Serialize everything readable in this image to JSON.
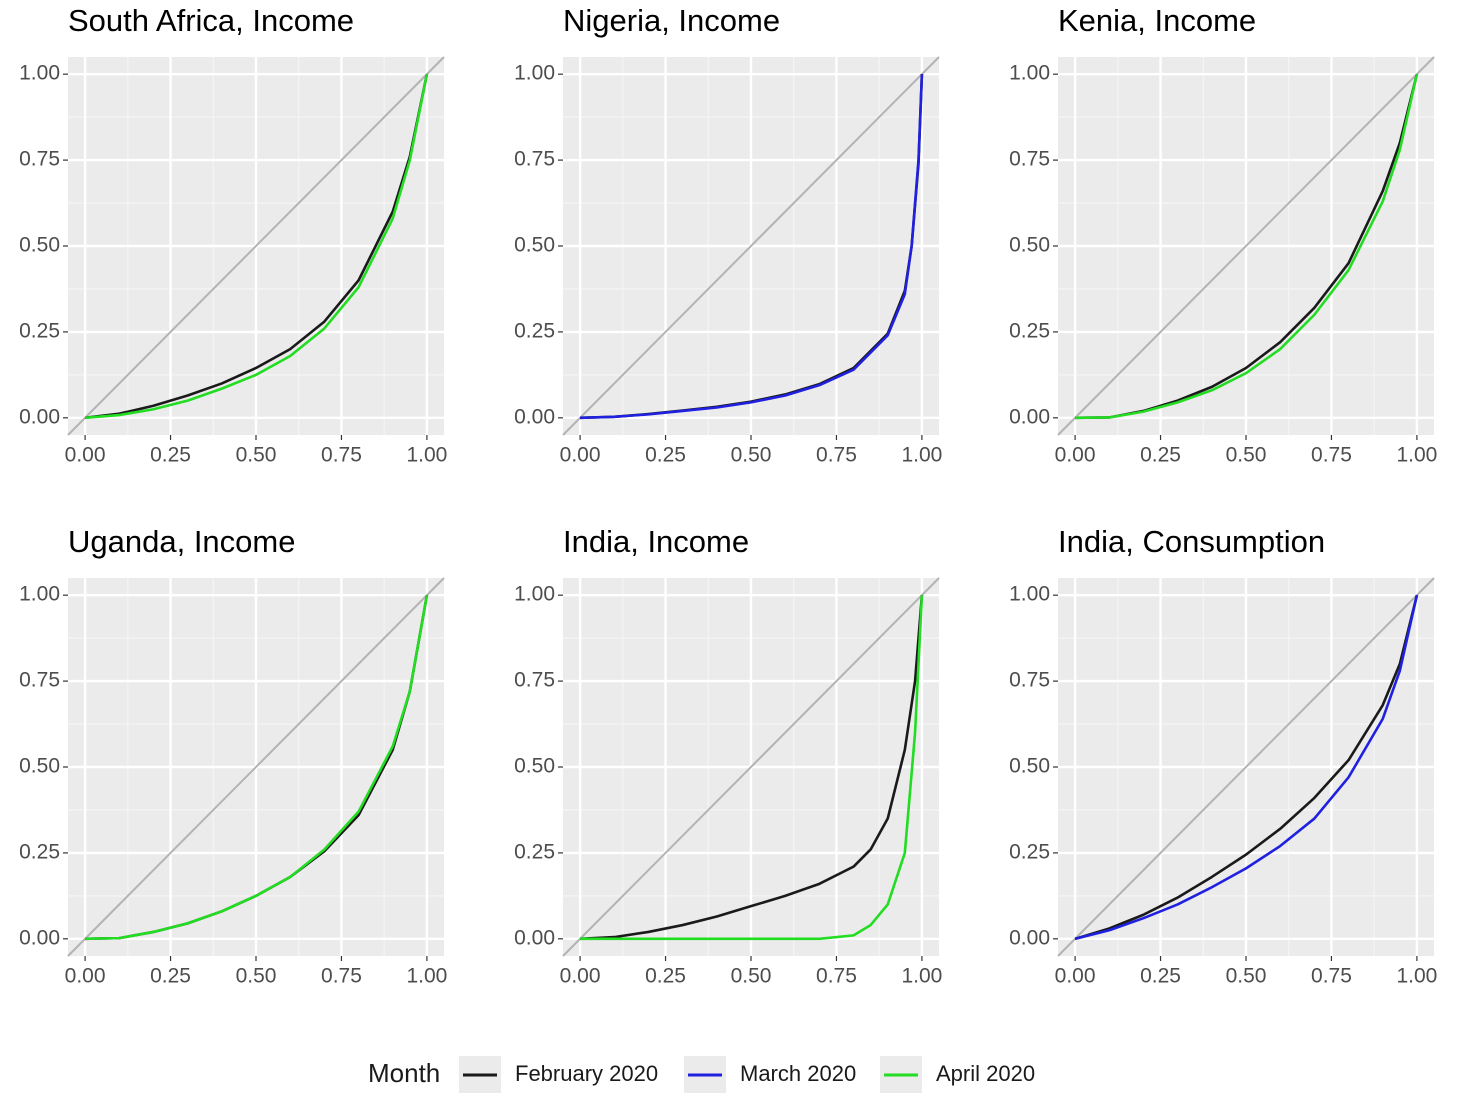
{
  "chart_data": [
    {
      "type": "line",
      "title": "South Africa, Income",
      "x": [
        0,
        0.1,
        0.2,
        0.3,
        0.4,
        0.5,
        0.6,
        0.7,
        0.8,
        0.9,
        0.95,
        1
      ],
      "series": [
        {
          "name": "February 2020",
          "color": "#1a1a1a",
          "values": [
            0,
            0.012,
            0.035,
            0.065,
            0.1,
            0.145,
            0.2,
            0.28,
            0.4,
            0.6,
            0.76,
            1
          ]
        },
        {
          "name": "April 2020",
          "color": "#22dd22",
          "values": [
            0,
            0.008,
            0.025,
            0.05,
            0.085,
            0.125,
            0.18,
            0.26,
            0.38,
            0.58,
            0.75,
            1
          ]
        }
      ],
      "xlim": [
        -0.05,
        1.05
      ],
      "ylim": [
        -0.05,
        1.05
      ],
      "xticks": [
        {
          "value": 0,
          "label": "0.00"
        },
        {
          "value": 0.25,
          "label": "0.25"
        },
        {
          "value": 0.5,
          "label": "0.50"
        },
        {
          "value": 0.75,
          "label": "0.75"
        },
        {
          "value": 1,
          "label": "1.00"
        }
      ],
      "yticks": [
        {
          "value": 0,
          "label": "0.00"
        },
        {
          "value": 0.25,
          "label": "0.25"
        },
        {
          "value": 0.5,
          "label": "0.50"
        },
        {
          "value": 0.75,
          "label": "0.75"
        },
        {
          "value": 1,
          "label": "1.00"
        }
      ],
      "grid": true
    },
    {
      "type": "line",
      "title": "Nigeria, Income",
      "x": [
        0,
        0.1,
        0.2,
        0.3,
        0.4,
        0.5,
        0.6,
        0.7,
        0.8,
        0.9,
        0.95,
        0.97,
        0.99,
        1
      ],
      "series": [
        {
          "name": "February 2020",
          "color": "#1a1a1a",
          "values": [
            0,
            0.003,
            0.011,
            0.021,
            0.032,
            0.047,
            0.068,
            0.098,
            0.145,
            0.245,
            0.37,
            0.5,
            0.74,
            1
          ]
        },
        {
          "name": "March 2020",
          "color": "#2020e0",
          "values": [
            0,
            0.003,
            0.01,
            0.02,
            0.03,
            0.045,
            0.065,
            0.095,
            0.14,
            0.24,
            0.36,
            0.5,
            0.75,
            1
          ]
        }
      ],
      "xlim": [
        -0.05,
        1.05
      ],
      "ylim": [
        -0.05,
        1.05
      ],
      "xticks": [
        {
          "value": 0,
          "label": "0.00"
        },
        {
          "value": 0.25,
          "label": "0.25"
        },
        {
          "value": 0.5,
          "label": "0.50"
        },
        {
          "value": 0.75,
          "label": "0.75"
        },
        {
          "value": 1,
          "label": "1.00"
        }
      ],
      "yticks": [
        {
          "value": 0,
          "label": "0.00"
        },
        {
          "value": 0.25,
          "label": "0.25"
        },
        {
          "value": 0.5,
          "label": "0.50"
        },
        {
          "value": 0.75,
          "label": "0.75"
        },
        {
          "value": 1,
          "label": "1.00"
        }
      ],
      "grid": true
    },
    {
      "type": "line",
      "title": "Kenia, Income",
      "x": [
        0,
        0.1,
        0.2,
        0.3,
        0.4,
        0.5,
        0.6,
        0.7,
        0.8,
        0.9,
        0.95,
        1
      ],
      "series": [
        {
          "name": "February 2020",
          "color": "#1a1a1a",
          "values": [
            0,
            0.001,
            0.02,
            0.05,
            0.09,
            0.145,
            0.22,
            0.32,
            0.45,
            0.66,
            0.8,
            1
          ]
        },
        {
          "name": "April 2020",
          "color": "#22dd22",
          "values": [
            0,
            0.001,
            0.018,
            0.045,
            0.08,
            0.13,
            0.2,
            0.3,
            0.43,
            0.63,
            0.78,
            1
          ]
        }
      ],
      "xlim": [
        -0.05,
        1.05
      ],
      "ylim": [
        -0.05,
        1.05
      ],
      "xticks": [
        {
          "value": 0,
          "label": "0.00"
        },
        {
          "value": 0.25,
          "label": "0.25"
        },
        {
          "value": 0.5,
          "label": "0.50"
        },
        {
          "value": 0.75,
          "label": "0.75"
        },
        {
          "value": 1,
          "label": "1.00"
        }
      ],
      "yticks": [
        {
          "value": 0,
          "label": "0.00"
        },
        {
          "value": 0.25,
          "label": "0.25"
        },
        {
          "value": 0.5,
          "label": "0.50"
        },
        {
          "value": 0.75,
          "label": "0.75"
        },
        {
          "value": 1,
          "label": "1.00"
        }
      ],
      "grid": true
    },
    {
      "type": "line",
      "title": "Uganda, Income",
      "x": [
        0,
        0.1,
        0.2,
        0.3,
        0.4,
        0.5,
        0.6,
        0.7,
        0.8,
        0.9,
        0.95,
        1
      ],
      "series": [
        {
          "name": "February 2020",
          "color": "#1a1a1a",
          "values": [
            0,
            0.002,
            0.02,
            0.045,
            0.08,
            0.125,
            0.18,
            0.255,
            0.36,
            0.55,
            0.72,
            1
          ]
        },
        {
          "name": "April 2020",
          "color": "#22dd22",
          "values": [
            0,
            0.002,
            0.02,
            0.045,
            0.08,
            0.125,
            0.18,
            0.26,
            0.37,
            0.56,
            0.72,
            1
          ]
        }
      ],
      "xlim": [
        -0.05,
        1.05
      ],
      "ylim": [
        -0.05,
        1.05
      ],
      "xticks": [
        {
          "value": 0,
          "label": "0.00"
        },
        {
          "value": 0.25,
          "label": "0.25"
        },
        {
          "value": 0.5,
          "label": "0.50"
        },
        {
          "value": 0.75,
          "label": "0.75"
        },
        {
          "value": 1,
          "label": "1.00"
        }
      ],
      "yticks": [
        {
          "value": 0,
          "label": "0.00"
        },
        {
          "value": 0.25,
          "label": "0.25"
        },
        {
          "value": 0.5,
          "label": "0.50"
        },
        {
          "value": 0.75,
          "label": "0.75"
        },
        {
          "value": 1,
          "label": "1.00"
        }
      ],
      "grid": true
    },
    {
      "type": "line",
      "title": "India, Income",
      "x": [
        0,
        0.1,
        0.2,
        0.3,
        0.4,
        0.5,
        0.6,
        0.7,
        0.8,
        0.85,
        0.9,
        0.95,
        0.98,
        1
      ],
      "series": [
        {
          "name": "February 2020",
          "color": "#1a1a1a",
          "values": [
            0,
            0.005,
            0.02,
            0.04,
            0.065,
            0.095,
            0.125,
            0.16,
            0.21,
            0.26,
            0.35,
            0.55,
            0.75,
            1
          ]
        },
        {
          "name": "April 2020",
          "color": "#22dd22",
          "values": [
            0,
            0,
            0,
            0,
            0,
            0,
            0,
            0,
            0.01,
            0.04,
            0.1,
            0.25,
            0.6,
            1
          ]
        }
      ],
      "xlim": [
        -0.05,
        1.05
      ],
      "ylim": [
        -0.05,
        1.05
      ],
      "xticks": [
        {
          "value": 0,
          "label": "0.00"
        },
        {
          "value": 0.25,
          "label": "0.25"
        },
        {
          "value": 0.5,
          "label": "0.50"
        },
        {
          "value": 0.75,
          "label": "0.75"
        },
        {
          "value": 1,
          "label": "1.00"
        }
      ],
      "yticks": [
        {
          "value": 0,
          "label": "0.00"
        },
        {
          "value": 0.25,
          "label": "0.25"
        },
        {
          "value": 0.5,
          "label": "0.50"
        },
        {
          "value": 0.75,
          "label": "0.75"
        },
        {
          "value": 1,
          "label": "1.00"
        }
      ],
      "grid": true
    },
    {
      "type": "line",
      "title": "India, Consumption",
      "x": [
        0,
        0.1,
        0.2,
        0.3,
        0.4,
        0.5,
        0.6,
        0.7,
        0.8,
        0.9,
        0.95,
        1
      ],
      "series": [
        {
          "name": "February 2020",
          "color": "#1a1a1a",
          "values": [
            0,
            0.03,
            0.07,
            0.12,
            0.18,
            0.245,
            0.32,
            0.41,
            0.52,
            0.68,
            0.8,
            1
          ]
        },
        {
          "name": "March 2020",
          "color": "#2020e0",
          "values": [
            0,
            0.025,
            0.06,
            0.1,
            0.15,
            0.205,
            0.27,
            0.35,
            0.47,
            0.64,
            0.78,
            1
          ]
        }
      ],
      "xlim": [
        -0.05,
        1.05
      ],
      "ylim": [
        -0.05,
        1.05
      ],
      "xticks": [
        {
          "value": 0,
          "label": "0.00"
        },
        {
          "value": 0.25,
          "label": "0.25"
        },
        {
          "value": 0.5,
          "label": "0.50"
        },
        {
          "value": 0.75,
          "label": "0.75"
        },
        {
          "value": 1,
          "label": "1.00"
        }
      ],
      "yticks": [
        {
          "value": 0,
          "label": "0.00"
        },
        {
          "value": 0.25,
          "label": "0.25"
        },
        {
          "value": 0.5,
          "label": "0.50"
        },
        {
          "value": 0.75,
          "label": "0.75"
        },
        {
          "value": 1,
          "label": "1.00"
        }
      ],
      "grid": true
    }
  ],
  "legend_title": "Month"
}
